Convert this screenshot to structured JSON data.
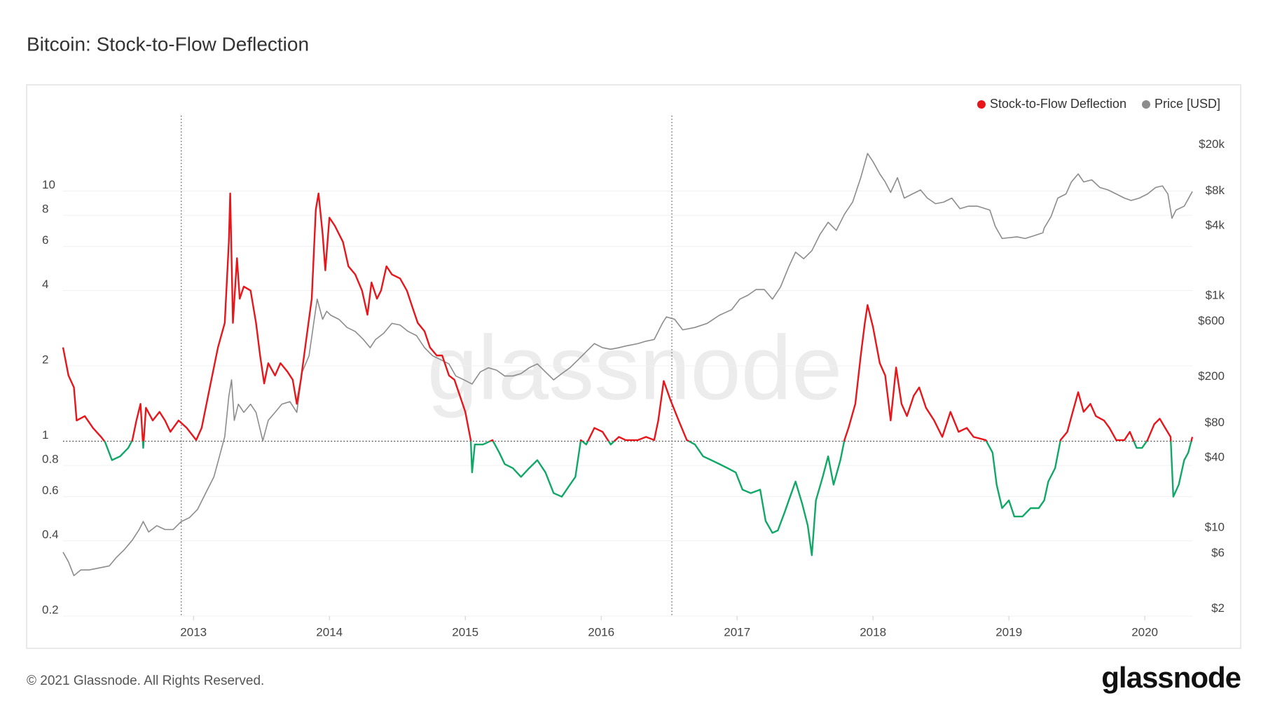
{
  "chart_data": {
    "type": "line",
    "title": "Bitcoin: Stock-to-Flow Deflection",
    "watermark": "glassnode",
    "footer": "© 2021 Glassnode. All Rights Reserved.",
    "brand": "glassnode",
    "xlim": [
      2012.04,
      2020.35
    ],
    "xticks": [
      2013,
      2014,
      2015,
      2016,
      2017,
      2018,
      2019,
      2020
    ],
    "ylim": [
      0.2,
      20
    ],
    "yticks": [
      0.2,
      0.4,
      0.6,
      0.8,
      1,
      2,
      4,
      6,
      8,
      10
    ],
    "log_y": true,
    "y2lim": [
      1.73,
      35600
    ],
    "y2ticks": [
      {
        "value": 2,
        "label": "$2"
      },
      {
        "value": 6,
        "label": "$6"
      },
      {
        "value": 10,
        "label": "$10"
      },
      {
        "value": 40,
        "label": "$40"
      },
      {
        "value": 80,
        "label": "$80"
      },
      {
        "value": 200,
        "label": "$200"
      },
      {
        "value": 600,
        "label": "$600"
      },
      {
        "value": 1000,
        "label": "$1k"
      },
      {
        "value": 4000,
        "label": "$4k"
      },
      {
        "value": 8000,
        "label": "$8k"
      },
      {
        "value": 20000,
        "label": "$20k"
      }
    ],
    "log_y2": true,
    "grid": true,
    "legend": "top-right",
    "halvings": [
      2012.91,
      2016.52
    ],
    "reference_y": 1,
    "series": [
      {
        "name": "Stock-to-Flow Deflection",
        "color": "#e8151b",
        "below_color": "#10a866",
        "x": [
          2012.04,
          2012.08,
          2012.12,
          2012.14,
          2012.2,
          2012.26,
          2012.32,
          2012.35,
          2012.4,
          2012.46,
          2012.52,
          2012.55,
          2012.58,
          2012.61,
          2012.63,
          2012.65,
          2012.7,
          2012.75,
          2012.79,
          2012.83,
          2012.89,
          2012.95,
          2013.02,
          2013.06,
          2013.12,
          2013.18,
          2013.23,
          2013.26,
          2013.27,
          2013.29,
          2013.32,
          2013.34,
          2013.37,
          2013.42,
          2013.46,
          2013.49,
          2013.52,
          2013.55,
          2013.6,
          2013.64,
          2013.69,
          2013.73,
          2013.76,
          2013.79,
          2013.83,
          2013.87,
          2013.9,
          2013.92,
          2013.95,
          2013.97,
          2014.0,
          2014.04,
          2014.1,
          2014.14,
          2014.19,
          2014.24,
          2014.28,
          2014.31,
          2014.35,
          2014.38,
          2014.42,
          2014.46,
          2014.52,
          2014.57,
          2014.61,
          2014.65,
          2014.7,
          2014.74,
          2014.79,
          2014.83,
          2014.88,
          2014.92,
          2014.96,
          2015.0,
          2015.04,
          2015.05,
          2015.07,
          2015.13,
          2015.2,
          2015.25,
          2015.29,
          2015.35,
          2015.41,
          2015.47,
          2015.53,
          2015.59,
          2015.65,
          2015.71,
          2015.77,
          2015.81,
          2015.85,
          2015.89,
          2015.95,
          2016.01,
          2016.07,
          2016.13,
          2016.18,
          2016.27,
          2016.33,
          2016.39,
          2016.42,
          2016.46,
          2016.51,
          2016.57,
          2016.63,
          2016.69,
          2016.75,
          2016.81,
          2016.87,
          2016.93,
          2016.99,
          2017.04,
          2017.1,
          2017.17,
          2017.21,
          2017.26,
          2017.3,
          2017.35,
          2017.39,
          2017.43,
          2017.48,
          2017.52,
          2017.55,
          2017.58,
          2017.63,
          2017.67,
          2017.71,
          2017.76,
          2017.79,
          2017.82,
          2017.87,
          2017.91,
          2017.94,
          2017.96,
          2018.0,
          2018.05,
          2018.09,
          2018.13,
          2018.17,
          2018.21,
          2018.25,
          2018.3,
          2018.34,
          2018.39,
          2018.45,
          2018.51,
          2018.57,
          2018.63,
          2018.69,
          2018.74,
          2018.83,
          2018.88,
          2018.91,
          2018.95,
          2019.0,
          2019.04,
          2019.1,
          2019.16,
          2019.22,
          2019.26,
          2019.29,
          2019.34,
          2019.38,
          2019.43,
          2019.47,
          2019.51,
          2019.55,
          2019.6,
          2019.64,
          2019.7,
          2019.74,
          2019.79,
          2019.85,
          2019.89,
          2019.94,
          2019.98,
          2020.02,
          2020.07,
          2020.11,
          2020.15,
          2020.19,
          2020.21,
          2020.25,
          2020.29,
          2020.32,
          2020.35
        ],
        "values": [
          2.37,
          1.83,
          1.64,
          1.21,
          1.26,
          1.13,
          1.04,
          0.99,
          0.84,
          0.87,
          0.94,
          1.01,
          1.21,
          1.41,
          0.94,
          1.36,
          1.21,
          1.31,
          1.21,
          1.09,
          1.21,
          1.13,
          1.01,
          1.13,
          1.64,
          2.37,
          2.97,
          6.25,
          9.78,
          2.97,
          5.39,
          3.71,
          4.15,
          4.0,
          2.97,
          2.2,
          1.7,
          2.05,
          1.83,
          2.05,
          1.9,
          1.76,
          1.41,
          1.76,
          2.56,
          3.71,
          8.43,
          9.78,
          6.74,
          4.82,
          7.82,
          7.26,
          6.25,
          5.0,
          4.64,
          4.0,
          3.2,
          4.31,
          3.71,
          4.0,
          5.0,
          4.64,
          4.47,
          4.0,
          3.44,
          2.97,
          2.75,
          2.37,
          2.2,
          2.2,
          1.83,
          1.76,
          1.52,
          1.31,
          1.01,
          0.75,
          0.97,
          0.97,
          1.01,
          0.9,
          0.81,
          0.78,
          0.72,
          0.78,
          0.84,
          0.75,
          0.62,
          0.6,
          0.67,
          0.72,
          1.01,
          0.97,
          1.13,
          1.09,
          0.97,
          1.04,
          1.01,
          1.01,
          1.04,
          1.01,
          1.21,
          1.74,
          1.46,
          1.21,
          1.01,
          0.97,
          0.87,
          0.84,
          0.81,
          0.78,
          0.75,
          0.64,
          0.62,
          0.64,
          0.48,
          0.43,
          0.44,
          0.52,
          0.6,
          0.69,
          0.56,
          0.46,
          0.35,
          0.58,
          0.72,
          0.87,
          0.67,
          0.84,
          1.01,
          1.13,
          1.41,
          2.2,
          2.97,
          3.5,
          2.86,
          2.05,
          1.83,
          1.21,
          1.97,
          1.41,
          1.26,
          1.52,
          1.64,
          1.36,
          1.21,
          1.04,
          1.31,
          1.09,
          1.13,
          1.04,
          1.01,
          0.9,
          0.67,
          0.54,
          0.58,
          0.5,
          0.5,
          0.54,
          0.54,
          0.58,
          0.69,
          0.78,
          1.01,
          1.09,
          1.31,
          1.57,
          1.31,
          1.41,
          1.26,
          1.21,
          1.13,
          1.01,
          1.01,
          1.09,
          0.94,
          0.94,
          1.01,
          1.17,
          1.23,
          1.13,
          1.04,
          0.6,
          0.67,
          0.84,
          0.9,
          1.04
        ]
      },
      {
        "name": "Price [USD]",
        "color": "#8c8c8c",
        "axis": "y2",
        "x": [
          2012.04,
          2012.08,
          2012.12,
          2012.17,
          2012.23,
          2012.29,
          2012.38,
          2012.43,
          2012.49,
          2012.55,
          2012.6,
          2012.63,
          2012.67,
          2012.73,
          2012.79,
          2012.85,
          2012.91,
          2012.97,
          2013.03,
          2013.09,
          2013.15,
          2013.19,
          2013.23,
          2013.26,
          2013.28,
          2013.3,
          2013.33,
          2013.37,
          2013.42,
          2013.46,
          2013.51,
          2013.55,
          2013.6,
          2013.65,
          2013.71,
          2013.76,
          2013.8,
          2013.85,
          2013.88,
          2013.91,
          2013.95,
          2013.98,
          2014.01,
          2014.07,
          2014.13,
          2014.19,
          2014.25,
          2014.3,
          2014.34,
          2014.4,
          2014.46,
          2014.52,
          2014.58,
          2014.64,
          2014.7,
          2014.76,
          2014.82,
          2014.88,
          2014.93,
          2014.99,
          2015.05,
          2015.11,
          2015.17,
          2015.23,
          2015.29,
          2015.35,
          2015.41,
          2015.47,
          2015.53,
          2015.59,
          2015.65,
          2015.71,
          2015.77,
          2015.83,
          2015.89,
          2015.95,
          2016.01,
          2016.07,
          2016.13,
          2016.18,
          2016.27,
          2016.33,
          2016.39,
          2016.45,
          2016.48,
          2016.54,
          2016.6,
          2016.69,
          2016.78,
          2016.87,
          2016.96,
          2017.02,
          2017.08,
          2017.14,
          2017.2,
          2017.26,
          2017.32,
          2017.38,
          2017.43,
          2017.49,
          2017.55,
          2017.61,
          2017.67,
          2017.73,
          2017.79,
          2017.85,
          2017.91,
          2017.96,
          2018.0,
          2018.05,
          2018.09,
          2018.13,
          2018.18,
          2018.23,
          2018.29,
          2018.35,
          2018.4,
          2018.46,
          2018.52,
          2018.58,
          2018.64,
          2018.7,
          2018.77,
          2018.86,
          2018.9,
          2018.95,
          2019.06,
          2019.12,
          2019.18,
          2019.25,
          2019.26,
          2019.31,
          2019.36,
          2019.42,
          2019.46,
          2019.51,
          2019.55,
          2019.61,
          2019.67,
          2019.73,
          2019.79,
          2019.85,
          2019.9,
          2019.96,
          2020.02,
          2020.08,
          2020.13,
          2020.17,
          2020.2,
          2020.23,
          2020.29,
          2020.35
        ],
        "values": [
          6.15,
          5.07,
          3.86,
          4.32,
          4.32,
          4.46,
          4.68,
          5.5,
          6.45,
          7.82,
          9.64,
          11.3,
          9.18,
          10.4,
          9.64,
          9.64,
          11.3,
          12.2,
          14.4,
          19.9,
          27.4,
          40.8,
          61.0,
          136,
          188,
          84.1,
          116,
          98.6,
          116,
          98.6,
          56.2,
          84.1,
          98.6,
          116,
          122,
          98.6,
          220,
          303,
          532,
          933,
          625,
          733,
          678,
          625,
          532,
          491,
          419,
          356,
          419,
          475,
          577,
          558,
          491,
          453,
          356,
          303,
          280,
          258,
          203,
          188,
          173,
          220,
          239,
          228,
          203,
          203,
          213,
          239,
          258,
          220,
          188,
          213,
          239,
          280,
          329,
          386,
          356,
          345,
          356,
          368,
          386,
          405,
          419,
          577,
          656,
          626,
          507,
          532,
          577,
          678,
          757,
          933,
          1010,
          1130,
          1130,
          933,
          1190,
          1770,
          2370,
          2080,
          2440,
          3370,
          4290,
          3650,
          5030,
          6400,
          10400,
          16800,
          14300,
          11200,
          9550,
          7760,
          10400,
          6930,
          7520,
          8150,
          6930,
          6200,
          6400,
          6930,
          5620,
          5900,
          5900,
          5460,
          3950,
          3110,
          3210,
          3110,
          3270,
          3480,
          3830,
          4800,
          6930,
          7520,
          9550,
          11200,
          9550,
          9950,
          8550,
          8150,
          7520,
          6930,
          6610,
          6930,
          7520,
          8550,
          8830,
          7520,
          4650,
          5460,
          5900,
          7890
        ]
      }
    ]
  }
}
